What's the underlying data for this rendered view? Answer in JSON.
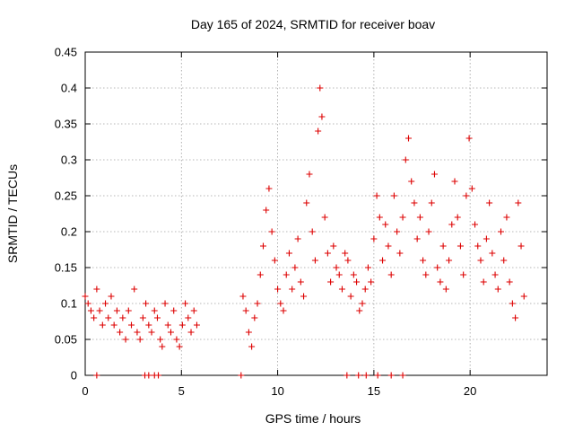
{
  "chart_data": {
    "type": "scatter",
    "title": "Day 165 of 2024, SRMTID for receiver boav",
    "xlabel": "GPS time / hours",
    "ylabel": "SRMTID / TECUs",
    "xlim": [
      0,
      24
    ],
    "ylim": [
      0,
      0.45
    ],
    "xticks": [
      0,
      5,
      10,
      15,
      20
    ],
    "xtick_labels": [
      "0",
      "5",
      "10",
      "15",
      "20"
    ],
    "yticks": [
      0,
      0.05,
      0.1,
      0.15,
      0.2,
      0.25,
      0.3,
      0.35,
      0.4,
      0.45
    ],
    "ytick_labels": [
      "0",
      "0.05",
      "0.1",
      "0.15",
      "0.2",
      "0.25",
      "0.3",
      "0.35",
      "0.4",
      "0.45"
    ],
    "grid": true,
    "marker": "plus",
    "marker_color": "#dd0000",
    "series": [
      {
        "name": "SRMTID",
        "x": [
          0.0,
          0.15,
          0.3,
          0.45,
          0.6,
          0.75,
          0.9,
          1.05,
          1.2,
          1.35,
          1.5,
          1.65,
          1.8,
          1.95,
          2.1,
          2.25,
          2.4,
          2.55,
          2.7,
          2.85,
          3.0,
          3.15,
          3.3,
          3.45,
          3.6,
          3.75,
          3.9,
          4.0,
          4.15,
          4.3,
          4.45,
          4.6,
          4.75,
          4.9,
          5.05,
          5.2,
          5.35,
          5.5,
          5.65,
          5.8,
          8.2,
          8.35,
          8.5,
          8.65,
          8.8,
          8.95,
          9.1,
          9.25,
          9.4,
          9.55,
          9.7,
          9.85,
          10.0,
          10.15,
          10.3,
          10.45,
          10.6,
          10.75,
          10.9,
          11.05,
          11.2,
          11.35,
          11.5,
          11.65,
          11.8,
          11.95,
          12.1,
          12.2,
          12.3,
          12.45,
          12.6,
          12.75,
          12.9,
          13.05,
          13.2,
          13.35,
          13.5,
          13.65,
          13.8,
          13.95,
          14.1,
          14.25,
          14.4,
          14.55,
          14.7,
          14.85,
          15.0,
          15.15,
          15.3,
          15.45,
          15.6,
          15.75,
          15.9,
          16.05,
          16.2,
          16.35,
          16.5,
          16.65,
          16.8,
          16.95,
          17.1,
          17.25,
          17.4,
          17.55,
          17.7,
          17.85,
          18.0,
          18.15,
          18.3,
          18.45,
          18.6,
          18.75,
          18.9,
          19.05,
          19.2,
          19.35,
          19.5,
          19.65,
          19.8,
          19.95,
          20.1,
          20.25,
          20.4,
          20.55,
          20.7,
          20.85,
          21.0,
          21.15,
          21.3,
          21.45,
          21.6,
          21.75,
          21.9,
          22.05,
          22.2,
          22.35,
          22.5,
          22.65,
          22.8,
          0.6,
          3.1,
          3.3,
          3.6,
          3.8,
          8.1,
          13.6,
          14.2,
          14.6,
          15.2,
          15.9,
          16.5
        ],
        "y": [
          0.11,
          0.1,
          0.09,
          0.08,
          0.12,
          0.09,
          0.07,
          0.1,
          0.08,
          0.11,
          0.07,
          0.09,
          0.06,
          0.08,
          0.05,
          0.09,
          0.07,
          0.12,
          0.06,
          0.05,
          0.08,
          0.1,
          0.07,
          0.06,
          0.09,
          0.08,
          0.05,
          0.04,
          0.1,
          0.07,
          0.06,
          0.09,
          0.05,
          0.04,
          0.07,
          0.1,
          0.08,
          0.06,
          0.09,
          0.07,
          0.11,
          0.09,
          0.06,
          0.04,
          0.08,
          0.1,
          0.14,
          0.18,
          0.23,
          0.26,
          0.2,
          0.16,
          0.12,
          0.1,
          0.09,
          0.14,
          0.17,
          0.12,
          0.15,
          0.19,
          0.13,
          0.11,
          0.24,
          0.28,
          0.2,
          0.16,
          0.34,
          0.4,
          0.36,
          0.22,
          0.17,
          0.13,
          0.18,
          0.15,
          0.14,
          0.12,
          0.17,
          0.16,
          0.11,
          0.14,
          0.13,
          0.09,
          0.1,
          0.12,
          0.15,
          0.13,
          0.19,
          0.25,
          0.22,
          0.16,
          0.21,
          0.18,
          0.14,
          0.25,
          0.2,
          0.17,
          0.22,
          0.3,
          0.33,
          0.27,
          0.24,
          0.19,
          0.22,
          0.16,
          0.14,
          0.2,
          0.24,
          0.28,
          0.15,
          0.13,
          0.18,
          0.12,
          0.16,
          0.21,
          0.27,
          0.22,
          0.18,
          0.14,
          0.25,
          0.33,
          0.26,
          0.21,
          0.18,
          0.16,
          0.13,
          0.19,
          0.24,
          0.17,
          0.14,
          0.12,
          0.2,
          0.16,
          0.22,
          0.13,
          0.1,
          0.08,
          0.24,
          0.18,
          0.11,
          0.0,
          0.0,
          0.0,
          0.0,
          0.0,
          0.0,
          0.0,
          0.0,
          0.0,
          0.0,
          0.0,
          0.0
        ]
      }
    ]
  }
}
